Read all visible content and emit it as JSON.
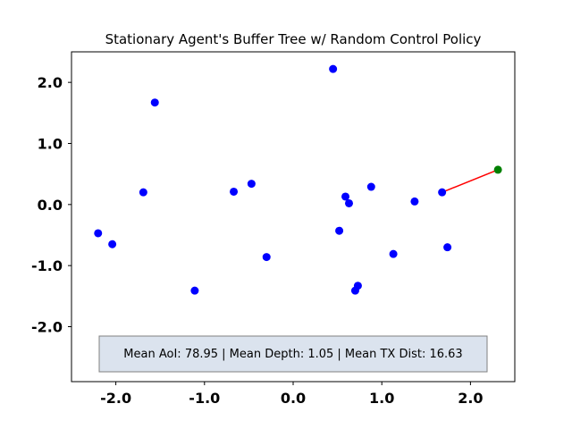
{
  "chart_data": {
    "type": "scatter",
    "title": "Stationary Agent's Buffer Tree w/ Random Control Policy",
    "xlabel": "",
    "ylabel": "",
    "xlim": [
      -2.5,
      2.5
    ],
    "ylim": [
      -2.9,
      2.5
    ],
    "xticks": [
      -2.0,
      -1.0,
      0.0,
      1.0,
      2.0
    ],
    "yticks": [
      -2.0,
      -1.0,
      0.0,
      1.0,
      2.0
    ],
    "xtick_labels": [
      "-2.0",
      "-1.0",
      "0.0",
      "1.0",
      "2.0"
    ],
    "ytick_labels": [
      "-2.0",
      "-1.0",
      "0.0",
      "1.0",
      "2.0"
    ],
    "grid": false,
    "colors": {
      "nodes": "#0000ff",
      "agent": "#008000",
      "edge": "#ff0000",
      "box_fill": "#dbe3ee",
      "box_edge": "#808080"
    },
    "nodes": [
      {
        "x": -2.2,
        "y": -0.47
      },
      {
        "x": -2.04,
        "y": -0.65
      },
      {
        "x": -1.69,
        "y": 0.2
      },
      {
        "x": -1.56,
        "y": 1.67
      },
      {
        "x": -1.11,
        "y": -1.41
      },
      {
        "x": -0.67,
        "y": 0.21
      },
      {
        "x": -0.47,
        "y": 0.34
      },
      {
        "x": -0.3,
        "y": -0.86
      },
      {
        "x": 0.45,
        "y": 2.22
      },
      {
        "x": 0.52,
        "y": -0.43
      },
      {
        "x": 0.59,
        "y": 0.13
      },
      {
        "x": 0.63,
        "y": 0.02
      },
      {
        "x": 0.7,
        "y": -1.41
      },
      {
        "x": 0.73,
        "y": -1.33
      },
      {
        "x": 0.88,
        "y": 0.29
      },
      {
        "x": 1.13,
        "y": -0.81
      },
      {
        "x": 1.37,
        "y": 0.05
      },
      {
        "x": 1.68,
        "y": 0.2
      },
      {
        "x": 1.74,
        "y": -0.7
      }
    ],
    "agent": {
      "x": 2.31,
      "y": 0.57
    },
    "edges": [
      {
        "x1": 1.68,
        "y1": 0.2,
        "x2": 2.31,
        "y2": 0.57
      }
    ],
    "annotation": "Mean AoI: 78.95 | Mean Depth: 1.05 | Mean TX Dist: 16.63"
  }
}
